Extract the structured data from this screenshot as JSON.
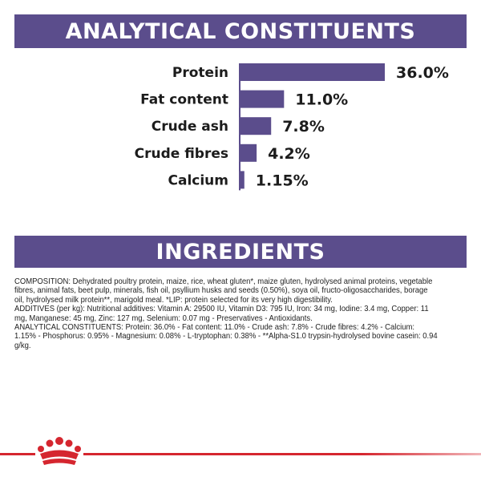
{
  "analytical": {
    "title": "ANALYTICAL CONSTITUENTS"
  },
  "chart_data": {
    "type": "bar",
    "orientation": "horizontal",
    "categories": [
      "Protein",
      "Fat content",
      "Crude ash",
      "Crude fibres",
      "Calcium"
    ],
    "values": [
      36.0,
      11.0,
      7.8,
      4.2,
      1.15
    ],
    "value_labels": [
      "36.0%",
      "11.0%",
      "7.8%",
      "4.2%",
      "1.15%"
    ],
    "unit": "%",
    "xlim": [
      0,
      36
    ],
    "bar_color": "#5b4d8c",
    "grid": false,
    "legend": "none"
  },
  "ingredients": {
    "title": "INGREDIENTS",
    "composition": "COMPOSITION: Dehydrated poultry protein, maize, rice, wheat gluten*, maize gluten, hydrolysed animal proteins, vegetable fibres, animal fats, beet pulp, minerals, fish oil, psyllium husks and seeds (0.50%), soya oil, fructo-oligosaccharides, borage oil, hydrolysed milk protein**, marigold meal. *LIP: protein selected for its very high digestibility.",
    "additives": "ADDITIVES (per kg): Nutritional additives: Vitamin A: 29500 IU, Vitamin D3: 795 IU, Iron: 34 mg, Iodine: 3.4 mg, Copper: 11 mg, Manganese: 45 mg, Zinc: 127 mg, Selenium: 0.07 mg - Preservatives - Antioxidants.",
    "analytical": "ANALYTICAL CONSTITUENTS: Protein: 36.0% - Fat content: 11.0% - Crude ash: 7.8% - Crude fibres: 4.2% - Calcium: 1.15% - Phosphorus: 0.95% - Magnesium: 0.08% - L-tryptophan: 0.38% - **Alpha-S1.0 trypsin-hydrolysed bovine casein: 0.94 g/kg."
  },
  "colors": {
    "brand_purple": "#5b4d8c",
    "brand_red": "#d5262f"
  },
  "footer": {
    "logo_icon": "royal-canin-crown-icon"
  }
}
